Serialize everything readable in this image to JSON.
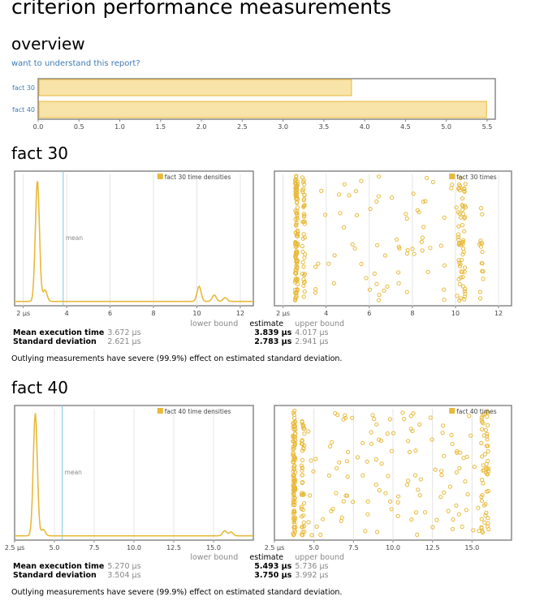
{
  "page": {
    "title": "criterion performance measurements",
    "overview_heading": "overview",
    "help_link": "want to understand this report?",
    "stats_headers": {
      "lower": "lower bound",
      "estimate": "estimate",
      "upper": "upper bound"
    }
  },
  "colors": {
    "accent": "#e8b93a",
    "fill": "#f8e3a8",
    "mean_line": "#7ac8e0",
    "axis": "#555555"
  },
  "chart_data": [
    {
      "id": "overview",
      "type": "bar",
      "orientation": "horizontal",
      "categories": [
        "fact 30",
        "fact 40"
      ],
      "values": [
        3.839,
        5.493
      ],
      "xlim": [
        0,
        5.6
      ],
      "xticks": [
        "0.0",
        "0.5",
        "1.0",
        "1.5",
        "2.0",
        "2.5",
        "3.0",
        "3.5",
        "4.0",
        "4.5",
        "5.0",
        "5.5"
      ],
      "grid": false
    },
    {
      "id": "fact30-density",
      "type": "line",
      "legend": "fact 30 time densities",
      "legend_position": "top-right",
      "x_unit": "μs",
      "xlim": [
        1.6,
        12.6
      ],
      "xticks": [
        "2 μs",
        "4",
        "6",
        "8",
        "10",
        "12"
      ],
      "mean": 3.839,
      "mean_label": "mean",
      "peaks": [
        [
          2.65,
          0.96
        ],
        [
          3.0,
          0.09
        ],
        [
          10.1,
          0.12
        ],
        [
          10.8,
          0.05
        ],
        [
          11.3,
          0.03
        ]
      ]
    },
    {
      "id": "fact30-times",
      "type": "scatter",
      "legend": "fact 30 times",
      "legend_position": "top-right",
      "x_unit": "μs",
      "xlim": [
        1.6,
        12.6
      ],
      "xticks": [
        "2 μs",
        "4",
        "6",
        "8",
        "10",
        "12"
      ]
    },
    {
      "id": "fact40-density",
      "type": "line",
      "legend": "fact 40 time densities",
      "legend_position": "top-right",
      "x_unit": "μs",
      "xlim": [
        2.5,
        17.5
      ],
      "xticks": [
        "2.5 μs",
        "5.0",
        "7.5",
        "10.0",
        "12.5",
        "15.0"
      ],
      "mean": 5.493,
      "mean_label": "mean",
      "peaks": [
        [
          3.8,
          0.97
        ],
        [
          4.3,
          0.05
        ],
        [
          15.7,
          0.04
        ],
        [
          16.1,
          0.03
        ]
      ]
    },
    {
      "id": "fact40-times",
      "type": "scatter",
      "legend": "fact 40 times",
      "legend_position": "top-right",
      "x_unit": "μs",
      "xlim": [
        2.5,
        17.5
      ],
      "xticks": [
        "2.5 μs",
        "5.0",
        "7.5",
        "10.0",
        "12.5",
        "15.0"
      ]
    }
  ],
  "benchmarks": [
    {
      "name": "fact 30",
      "mean_label": "Mean execution time",
      "mean": {
        "lower": "3.672 μs",
        "estimate": "3.839 μs",
        "upper": "4.017 μs"
      },
      "sd_label": "Standard deviation",
      "sd": {
        "lower": "2.621 μs",
        "estimate": "2.783 μs",
        "upper": "2.941 μs"
      },
      "outliers": "Outlying measurements have severe (99.9%) effect on estimated standard deviation."
    },
    {
      "name": "fact 40",
      "mean_label": "Mean execution time",
      "mean": {
        "lower": "5.270 μs",
        "estimate": "5.493 μs",
        "upper": "5.736 μs"
      },
      "sd_label": "Standard deviation",
      "sd": {
        "lower": "3.504 μs",
        "estimate": "3.750 μs",
        "upper": "3.992 μs"
      },
      "outliers": "Outlying measurements have severe (99.9%) effect on estimated standard deviation."
    }
  ]
}
